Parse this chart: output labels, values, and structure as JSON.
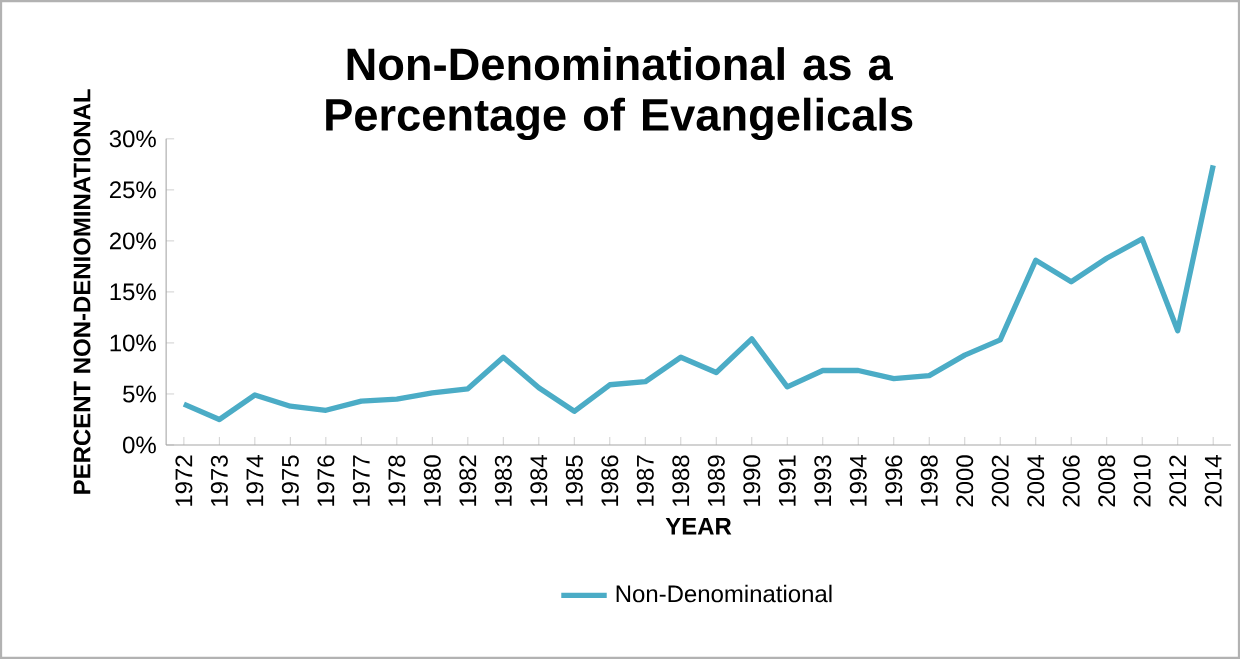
{
  "chart_data": {
    "type": "line",
    "title": "Non-Denominational as a Percentage of Evangelicals",
    "xlabel": "YEAR",
    "ylabel": "PERCENT NON-DENIOMINATIONAL",
    "categories": [
      "1972",
      "1973",
      "1974",
      "1975",
      "1976",
      "1977",
      "1978",
      "1980",
      "1982",
      "1983",
      "1984",
      "1985",
      "1986",
      "1987",
      "1988",
      "1989",
      "1990",
      "1991",
      "1993",
      "1994",
      "1996",
      "1998",
      "2000",
      "2002",
      "2004",
      "2006",
      "2008",
      "2010",
      "2012",
      "2014"
    ],
    "series": [
      {
        "name": "Non-Denominational",
        "color": "#4bacc6",
        "values": [
          4.0,
          2.5,
          4.9,
          3.8,
          3.4,
          4.3,
          4.5,
          5.1,
          5.5,
          8.6,
          5.6,
          3.3,
          5.9,
          6.2,
          8.6,
          7.1,
          10.4,
          5.7,
          7.3,
          7.3,
          6.5,
          6.8,
          8.8,
          10.3,
          18.1,
          16.0,
          18.3,
          20.2,
          11.2,
          27.4
        ]
      }
    ],
    "ylim": [
      0,
      30
    ],
    "yticks": [
      {
        "value": 0,
        "label": "0%"
      },
      {
        "value": 5,
        "label": "5%"
      },
      {
        "value": 10,
        "label": "10%"
      },
      {
        "value": 15,
        "label": "15%"
      },
      {
        "value": 20,
        "label": "20%"
      },
      {
        "value": 25,
        "label": "25%"
      },
      {
        "value": 30,
        "label": "30%"
      }
    ],
    "grid": false,
    "legend": "bottom",
    "marker": "none",
    "line_style": "solid"
  }
}
